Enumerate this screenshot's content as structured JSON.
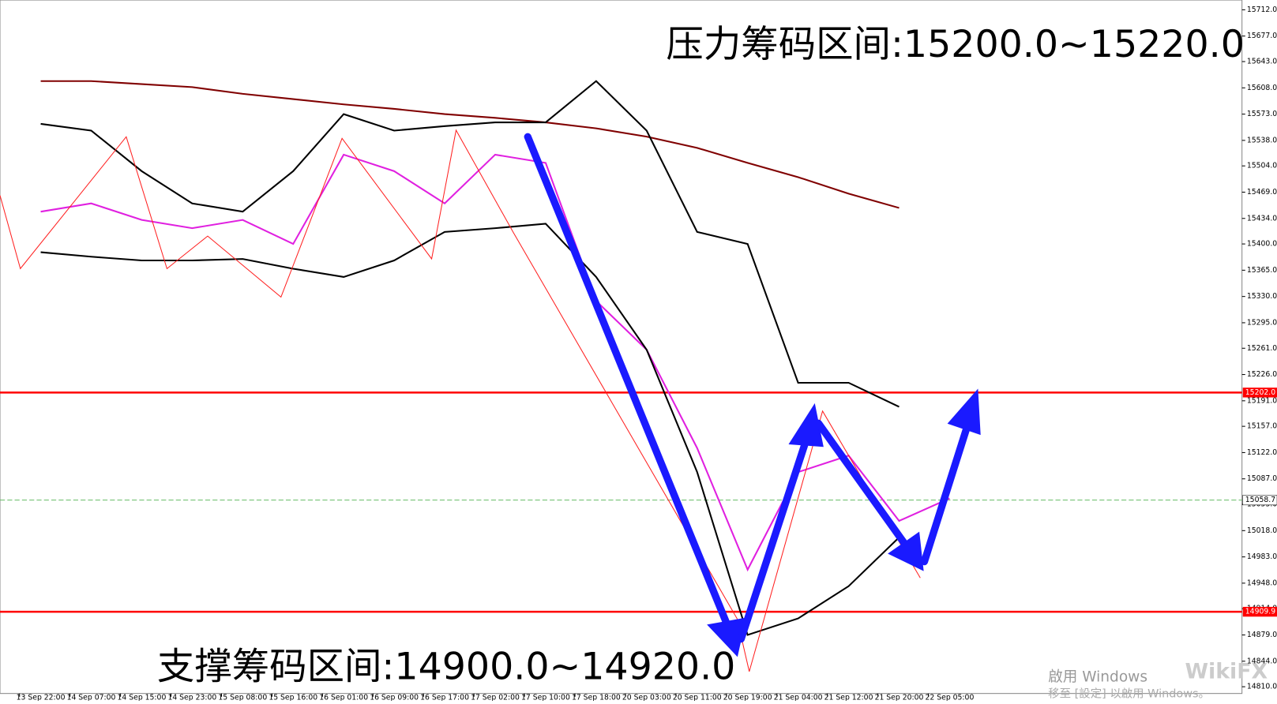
{
  "chart_data": {
    "type": "line",
    "categories": [
      "13 Sep 22:00",
      "14 Sep 07:00",
      "14 Sep 15:00",
      "14 Sep 23:00",
      "15 Sep 08:00",
      "15 Sep 16:00",
      "16 Sep 01:00",
      "16 Sep 09:00",
      "16 Sep 17:00",
      "17 Sep 02:00",
      "17 Sep 10:00",
      "17 Sep 18:00",
      "20 Sep 03:00",
      "20 Sep 11:00",
      "20 Sep 19:00",
      "21 Sep 04:00",
      "21 Sep 12:00",
      "21 Sep 20:00",
      "22 Sep 05:00"
    ],
    "series": [
      {
        "color": "#e020e0",
        "values": [
          15443,
          15454,
          15432,
          15421,
          15432,
          15400,
          15519,
          15497,
          15454,
          15519,
          15508,
          15324,
          15259,
          15128,
          14966,
          15096,
          15118,
          15031,
          15061
        ]
      },
      {
        "color": "#800000",
        "values": [
          15617,
          15617,
          15613,
          15609,
          15600,
          15593,
          15586,
          15580,
          15573,
          15568,
          15562,
          15554,
          15543,
          15528,
          15508,
          15489,
          15467,
          15448,
          null
        ]
      },
      {
        "color": "#000000",
        "values": [
          15560,
          15551,
          15497,
          15454,
          15443,
          15497,
          15573,
          15551,
          15557,
          15562,
          15562,
          15617,
          15551,
          15416,
          15400,
          15215,
          15215,
          15183,
          null
        ]
      },
      {
        "color": "#000000",
        "values": [
          15389,
          15383,
          15378,
          15378,
          15380,
          15367,
          15356,
          15378,
          15416,
          15421,
          15427,
          15356,
          15259,
          15096,
          14879,
          14901,
          14944,
          15009,
          null
        ]
      }
    ],
    "ylim": [
      14801,
      15725
    ],
    "yticks": [
      {
        "value": 15712,
        "label": "15712.0"
      },
      {
        "value": 15677,
        "label": "15677.0"
      },
      {
        "value": 15643,
        "label": "15643.0"
      },
      {
        "value": 15608,
        "label": "15608.0"
      },
      {
        "value": 15573,
        "label": "15573.0"
      },
      {
        "value": 15538,
        "label": "15538.0"
      },
      {
        "value": 15504,
        "label": "15504.0"
      },
      {
        "value": 15469,
        "label": "15469.0"
      },
      {
        "value": 15434,
        "label": "15434.0"
      },
      {
        "value": 15400,
        "label": "15400.0"
      },
      {
        "value": 15365,
        "label": "15365.0"
      },
      {
        "value": 15330,
        "label": "15330.0"
      },
      {
        "value": 15295,
        "label": "15295.0"
      },
      {
        "value": 15261,
        "label": "15261.0"
      },
      {
        "value": 15226,
        "label": "15226.0"
      },
      {
        "value": 15191,
        "label": "15191.0"
      },
      {
        "value": 15157,
        "label": "15157.0"
      },
      {
        "value": 15122,
        "label": "15122.0"
      },
      {
        "value": 15087,
        "label": "15087.0"
      },
      {
        "value": 15053,
        "label": "15053.0"
      },
      {
        "value": 15018,
        "label": "15018.0"
      },
      {
        "value": 14983,
        "label": "14983.0"
      },
      {
        "value": 14948,
        "label": "14948.0"
      },
      {
        "value": 14914,
        "label": "14914.0"
      },
      {
        "value": 14879,
        "label": "14879.0"
      },
      {
        "value": 14844,
        "label": "14844.0"
      },
      {
        "value": 14810,
        "label": "14810.0"
      }
    ],
    "levels": [
      {
        "value": 15202,
        "label": "15202.0",
        "color": "#ff0000"
      },
      {
        "value": 15058.7,
        "label": "15058.7",
        "color": "#66bb66"
      },
      {
        "value": 14909.9,
        "label": "14909.9",
        "color": "#ff0000"
      }
    ],
    "annotations": [
      "压力筹码区间:15200.0~15220.0",
      "支撑筹码区间:14900.0~14920.0"
    ],
    "watermark": [
      "啟用 Windows",
      "移至 [設定] 以啟用 Windows。",
      "WikiFX"
    ]
  }
}
